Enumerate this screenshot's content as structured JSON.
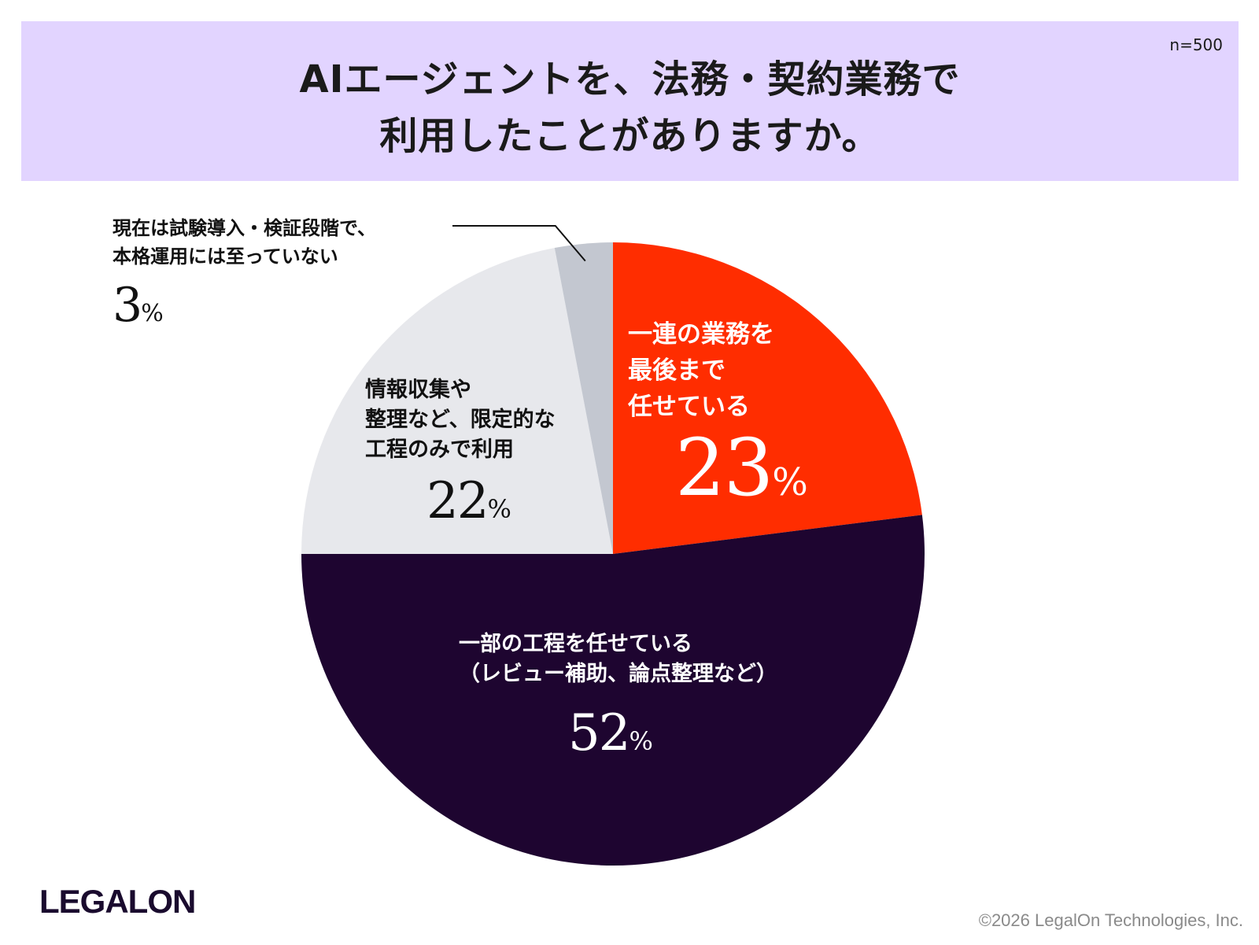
{
  "header": {
    "title_line1": "AIエージェントを、法務・契約業務で",
    "title_line2": "利用したことがありますか。",
    "sample_size": "n=500"
  },
  "chart_data": {
    "type": "pie",
    "title": "AIエージェントを、法務・契約業務で利用したことがありますか。",
    "slices": [
      {
        "key": "full",
        "label_lines": [
          "一連の業務を",
          "最後まで",
          "任せている"
        ],
        "value": 23,
        "value_text": "23",
        "color": "#ff2d00",
        "text_color": "#ffffff"
      },
      {
        "key": "partial",
        "label_lines": [
          "一部の工程を任せている",
          "（レビュー補助、論点整理など）"
        ],
        "value": 52,
        "value_text": "52",
        "color": "#1e0530",
        "text_color": "#ffffff"
      },
      {
        "key": "limited",
        "label_lines": [
          "情報収集や",
          "整理など、限定的な",
          "工程のみで利用"
        ],
        "value": 22,
        "value_text": "22",
        "color": "#e7e8ec",
        "text_color": "#111111"
      },
      {
        "key": "trial",
        "label_lines": [
          "現在は試験導入・検証段階で、",
          "本格運用には至っていない"
        ],
        "value": 3,
        "value_text": "3",
        "color": "#c3c7d0",
        "text_color": "#111111"
      }
    ],
    "percent_symbol": "%"
  },
  "footer": {
    "logo_text": "LEGALON",
    "copyright": "©2026 LegalOn Technologies, Inc."
  }
}
